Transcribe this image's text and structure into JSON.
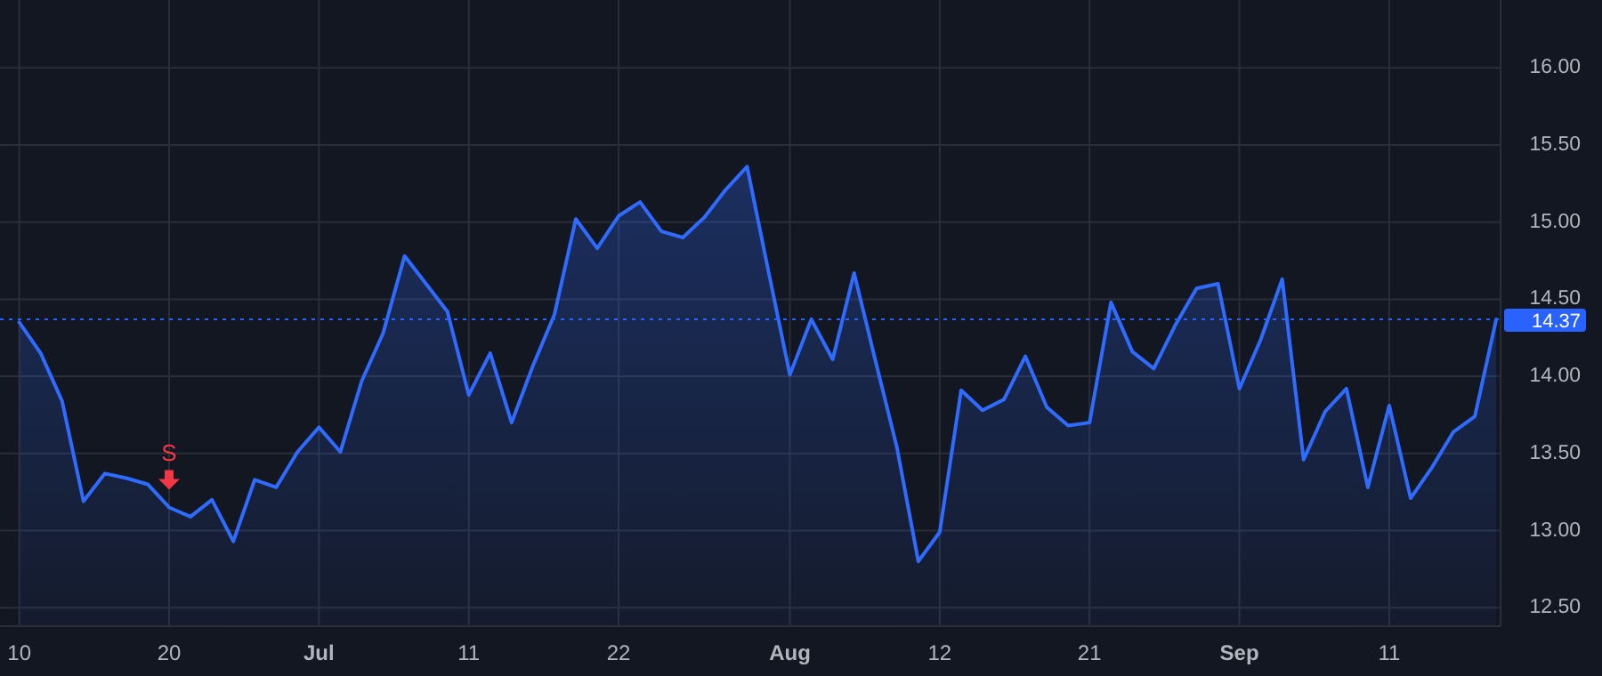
{
  "chart_data": {
    "type": "area",
    "categories": [
      "10",
      null,
      null,
      null,
      null,
      null,
      null,
      "20",
      null,
      null,
      null,
      null,
      null,
      null,
      "Jul",
      null,
      null,
      null,
      null,
      null,
      null,
      "11",
      null,
      null,
      null,
      null,
      null,
      null,
      "22",
      null,
      null,
      null,
      null,
      null,
      null,
      null,
      "Aug",
      null,
      null,
      null,
      null,
      null,
      null,
      "12",
      null,
      null,
      null,
      null,
      null,
      null,
      "21",
      null,
      null,
      null,
      null,
      null,
      null,
      "Sep",
      null,
      null,
      null,
      null,
      null,
      null,
      "11",
      null,
      null,
      null,
      null,
      null
    ],
    "series": [
      {
        "color": "#2f6bff",
        "values": [
          14.35,
          14.15,
          13.84,
          13.19,
          13.37,
          13.34,
          13.3,
          13.15,
          13.09,
          13.2,
          12.93,
          13.33,
          13.28,
          13.51,
          13.67,
          13.51,
          13.97,
          14.28,
          14.78,
          14.6,
          14.42,
          13.88,
          14.15,
          13.7,
          14.07,
          14.4,
          15.02,
          14.83,
          15.04,
          15.13,
          14.94,
          14.9,
          15.03,
          15.21,
          15.36,
          14.68,
          14.01,
          14.37,
          14.11,
          14.67,
          14.1,
          13.54,
          12.8,
          12.99,
          13.91,
          13.78,
          13.85,
          14.13,
          13.8,
          13.68,
          13.7,
          14.48,
          14.16,
          14.05,
          14.33,
          14.57,
          14.6,
          13.92,
          14.24,
          14.63,
          13.46,
          13.77,
          13.92,
          13.28,
          13.81,
          13.21,
          13.41,
          13.64,
          13.74,
          14.37
        ]
      }
    ],
    "ylim": [
      12.38,
      16.44
    ],
    "yticks": [
      {
        "value": 12.5,
        "label": "12.50"
      },
      {
        "value": 13,
        "label": "13.00"
      },
      {
        "value": 13.5,
        "label": "13.50"
      },
      {
        "value": 14,
        "label": "14.00"
      },
      {
        "value": 14.5,
        "label": "14.50"
      },
      {
        "value": 15,
        "label": "15.00"
      },
      {
        "value": 15.5,
        "label": "15.50"
      },
      {
        "value": 16,
        "label": "16.00"
      }
    ],
    "grid": true,
    "ref_lines": [
      {
        "axis": "y",
        "value": 14.37,
        "label": "14.37",
        "color": "#2962ff",
        "line_style": "dotted"
      }
    ],
    "annotations": [
      {
        "text": "S",
        "x": "20",
        "y": 13.15
      }
    ]
  }
}
